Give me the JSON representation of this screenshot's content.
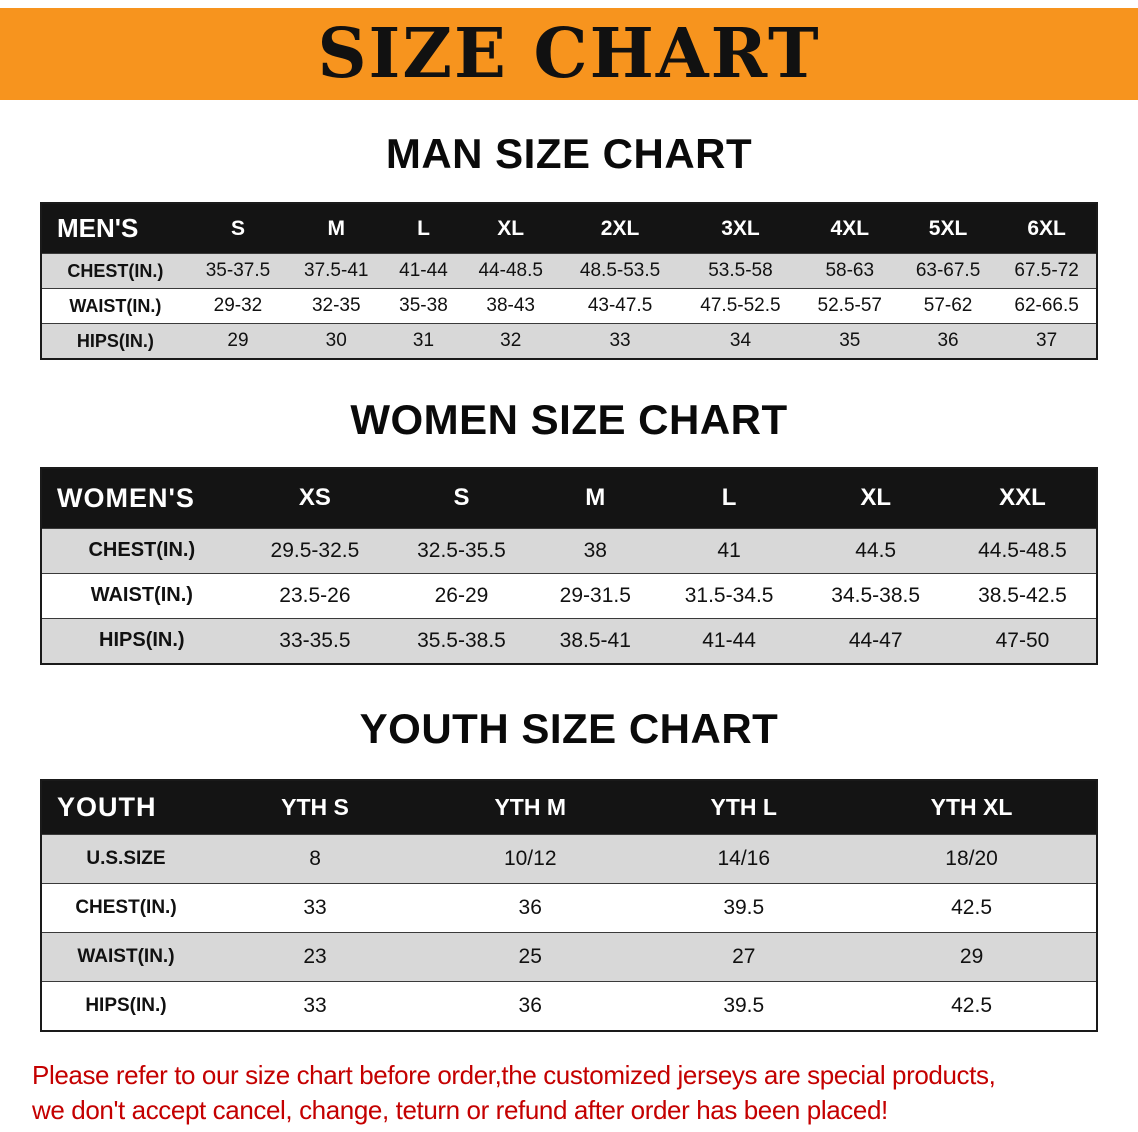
{
  "banner": {
    "title": "SIZE CHART"
  },
  "men": {
    "heading": "MAN SIZE CHART",
    "header": [
      "MEN'S",
      "S",
      "M",
      "L",
      "XL",
      "2XL",
      "3XL",
      "4XL",
      "5XL",
      "6XL"
    ],
    "rows": [
      [
        "CHEST(IN.)",
        "35-37.5",
        "37.5-41",
        "41-44",
        "44-48.5",
        "48.5-53.5",
        "53.5-58",
        "58-63",
        "63-67.5",
        "67.5-72"
      ],
      [
        "WAIST(IN.)",
        "29-32",
        "32-35",
        "35-38",
        "38-43",
        "43-47.5",
        "47.5-52.5",
        "52.5-57",
        "57-62",
        "62-66.5"
      ],
      [
        "HIPS(IN.)",
        "29",
        "30",
        "31",
        "32",
        "33",
        "34",
        "35",
        "36",
        "37"
      ]
    ]
  },
  "women": {
    "heading": "WOMEN SIZE CHART",
    "header": [
      "WOMEN'S",
      "XS",
      "S",
      "M",
      "L",
      "XL",
      "XXL"
    ],
    "rows": [
      [
        "CHEST(IN.)",
        "29.5-32.5",
        "32.5-35.5",
        "38",
        "41",
        "44.5",
        "44.5-48.5"
      ],
      [
        "WAIST(IN.)",
        "23.5-26",
        "26-29",
        "29-31.5",
        "31.5-34.5",
        "34.5-38.5",
        "38.5-42.5"
      ],
      [
        "HIPS(IN.)",
        "33-35.5",
        "35.5-38.5",
        "38.5-41",
        "41-44",
        "44-47",
        "47-50"
      ]
    ]
  },
  "youth": {
    "heading": "YOUTH SIZE CHART",
    "header": [
      "YOUTH",
      "YTH S",
      "YTH M",
      "YTH L",
      "YTH XL"
    ],
    "rows": [
      [
        "U.S.SIZE",
        "8",
        "10/12",
        "14/16",
        "18/20"
      ],
      [
        "CHEST(IN.)",
        "33",
        "36",
        "39.5",
        "42.5"
      ],
      [
        "WAIST(IN.)",
        "23",
        "25",
        "27",
        "29"
      ],
      [
        "HIPS(IN.)",
        "33",
        "36",
        "39.5",
        "42.5"
      ]
    ]
  },
  "footer": {
    "line1": "Please refer to our size chart before order,the customized jerseys are special products,",
    "line2": "we don't accept cancel, change, teturn or refund after order has been placed!"
  },
  "colors": {
    "banner_bg": "#f7941e",
    "header_bg": "#141414",
    "row_alt_bg": "#d8d8d8",
    "footer_text": "#c40000"
  }
}
